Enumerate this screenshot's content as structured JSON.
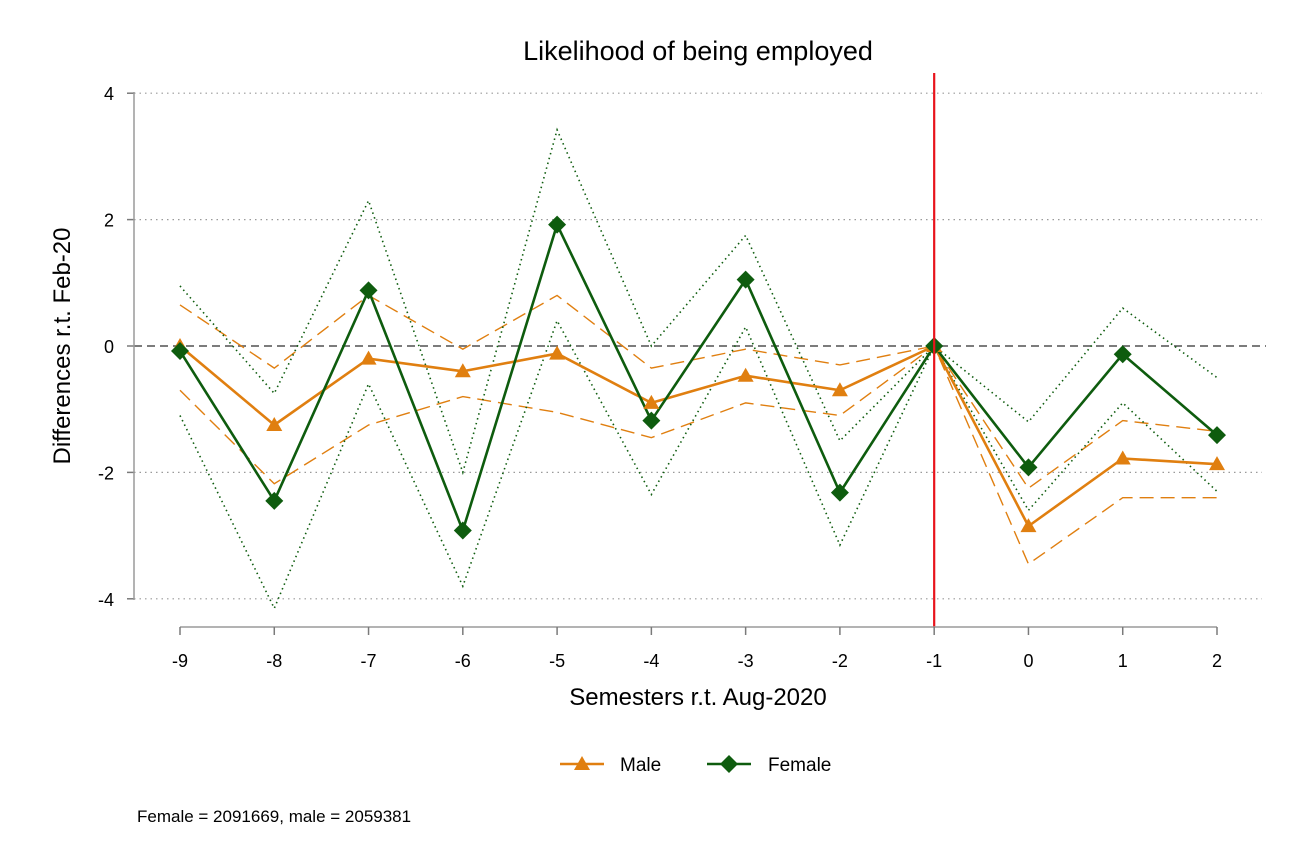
{
  "chart_data": {
    "type": "line",
    "title": "Likelihood of being employed",
    "xlabel": "Semesters r.t. Aug-2020",
    "ylabel": "Differences r.t. Feb-20",
    "x": [
      -9,
      -8,
      -7,
      -6,
      -5,
      -4,
      -3,
      -2,
      -1,
      0,
      1,
      2
    ],
    "xticks": [
      "-9",
      "-8",
      "-7",
      "-6",
      "-5",
      "-4",
      "-3",
      "-2",
      "-1",
      "0",
      "1",
      "2"
    ],
    "yticks": [
      "4",
      "2",
      "0",
      "-2",
      "-4"
    ],
    "ytick_values": [
      4,
      2,
      0,
      -2,
      -4
    ],
    "xlim": [
      -9,
      2
    ],
    "ylim": [
      -4.2,
      4.3
    ],
    "reference_vline_x": -1,
    "reference_hline_y": 0,
    "grid": "horizontal dotted",
    "series": [
      {
        "name": "Male",
        "color": "#e07f10",
        "marker": "triangle",
        "values": [
          0.0,
          -1.25,
          -0.2,
          -0.4,
          -0.12,
          -0.9,
          -0.47,
          -0.7,
          0.0,
          -2.85,
          -1.78,
          -1.87
        ],
        "ci_low": [
          -0.7,
          -2.18,
          -1.25,
          -0.8,
          -1.05,
          -1.45,
          -0.9,
          -1.1,
          0.0,
          -3.45,
          -2.4,
          -2.4
        ],
        "ci_high": [
          0.65,
          -0.35,
          0.8,
          -0.05,
          0.8,
          -0.35,
          -0.05,
          -0.3,
          0.0,
          -2.25,
          -1.18,
          -1.35
        ],
        "ci_style": "dashed"
      },
      {
        "name": "Female",
        "color": "#0e5c0e",
        "marker": "diamond",
        "values": [
          -0.08,
          -2.45,
          0.88,
          -2.92,
          1.92,
          -1.18,
          1.05,
          -2.32,
          0.0,
          -1.92,
          -0.13,
          -1.41
        ],
        "ci_low": [
          -1.1,
          -4.15,
          -0.6,
          -3.8,
          0.4,
          -2.35,
          0.3,
          -3.15,
          0.0,
          -2.6,
          -0.9,
          -2.3
        ],
        "ci_high": [
          0.95,
          -0.75,
          2.3,
          -2.0,
          3.42,
          0.0,
          1.75,
          -1.5,
          0.0,
          -1.2,
          0.6,
          -0.5
        ],
        "ci_style": "dotted"
      }
    ],
    "legend": {
      "position": "bottom",
      "entries": [
        "Male",
        "Female"
      ]
    },
    "note": "Female = 2091669, male = 2059381"
  }
}
